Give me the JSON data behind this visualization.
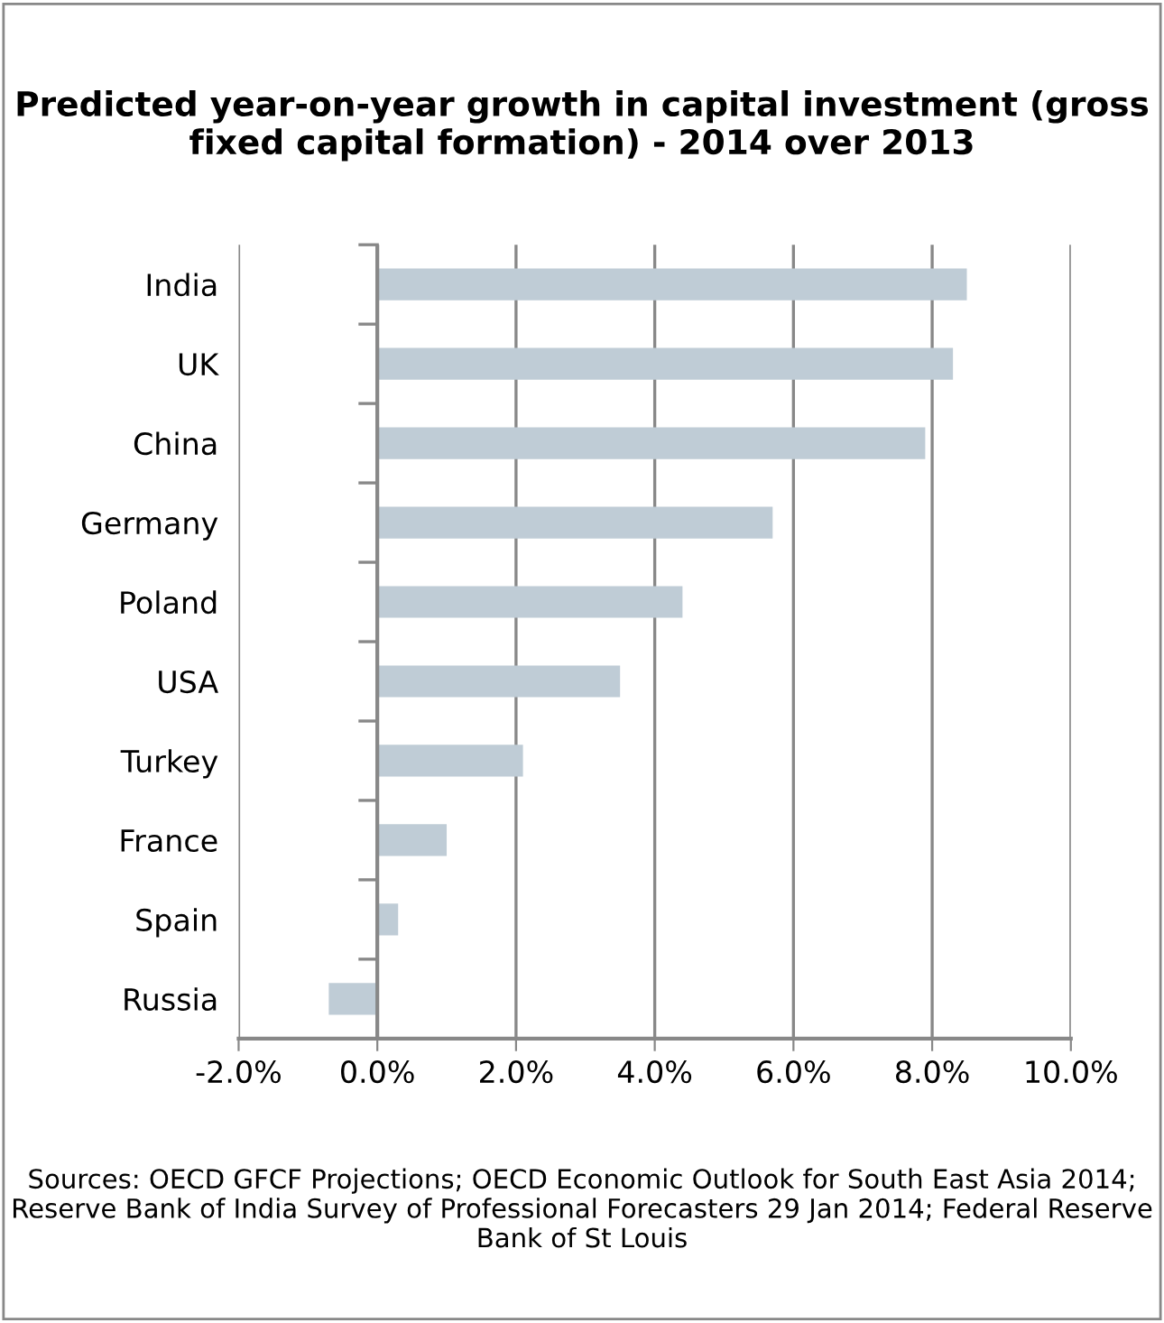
{
  "chart_data": {
    "type": "bar",
    "orientation": "horizontal",
    "title": "Predicted year-on-year growth in capital investment (gross fixed capital formation) - 2014 over 2013",
    "categories": [
      "India",
      "UK",
      "China",
      "Germany",
      "Poland",
      "USA",
      "Turkey",
      "France",
      "Spain",
      "Russia"
    ],
    "values": [
      8.5,
      8.3,
      7.9,
      5.7,
      4.4,
      3.5,
      2.1,
      1.0,
      0.3,
      -0.7
    ],
    "color": "#bfccd6",
    "xlim": [
      -2,
      10
    ],
    "xticks": [
      {
        "value": -2,
        "label": "-2.0%"
      },
      {
        "value": 0,
        "label": "0.0%"
      },
      {
        "value": 2,
        "label": "2.0%"
      },
      {
        "value": 4,
        "label": "4.0%"
      },
      {
        "value": 6,
        "label": "6.0%"
      },
      {
        "value": 8,
        "label": "8.0%"
      },
      {
        "value": 10,
        "label": "10.0%"
      }
    ],
    "grid": "x",
    "annotations": [
      "Sources: OECD GFCF Projections; OECD Economic Outlook for South East Asia 2014; Reserve Bank of India Survey of Professional Forecasters 29 Jan 2014; Federal Reserve Bank of St Louis"
    ]
  }
}
